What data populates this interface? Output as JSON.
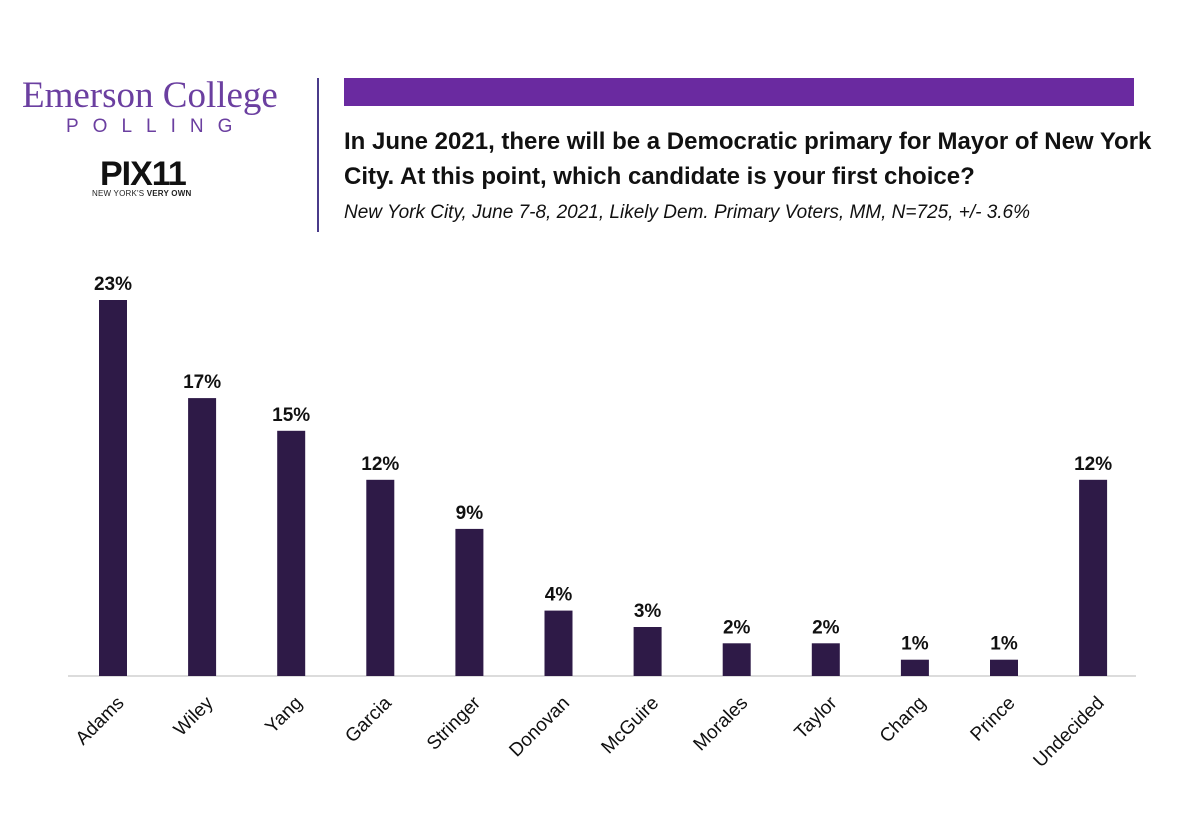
{
  "header": {
    "brand_name": "Emerson College",
    "brand_sub": "POLLING",
    "pix_logo": "PIX11",
    "pix_tagline_pre": "NEW YORK'S ",
    "pix_tagline_bold": "VERY OWN",
    "accent_color": "#6a2aa0",
    "brand_color": "#6b3fa0"
  },
  "question": "In June 2021, there will be a Democratic primary for Mayor of New York City. At this point, which candidate is your first choice?",
  "subtitle": "New York City, June 7-8, 2021, Likely Dem. Primary Voters, MM, N=725, +/- 3.6%",
  "chart_data": {
    "type": "bar",
    "categories": [
      "Adams",
      "Wiley",
      "Yang",
      "Garcia",
      "Stringer",
      "Donovan",
      "McGuire",
      "Morales",
      "Taylor",
      "Chang",
      "Prince",
      "Undecided"
    ],
    "values": [
      23,
      17,
      15,
      12,
      9,
      4,
      3,
      2,
      2,
      1,
      1,
      12
    ],
    "labels": [
      "23%",
      "17%",
      "15%",
      "12%",
      "9%",
      "4%",
      "3%",
      "2%",
      "2%",
      "1%",
      "1%",
      "12%"
    ],
    "bar_color": "#2e1a47",
    "ylim": [
      0,
      23
    ],
    "grid": false,
    "legend": "none"
  }
}
